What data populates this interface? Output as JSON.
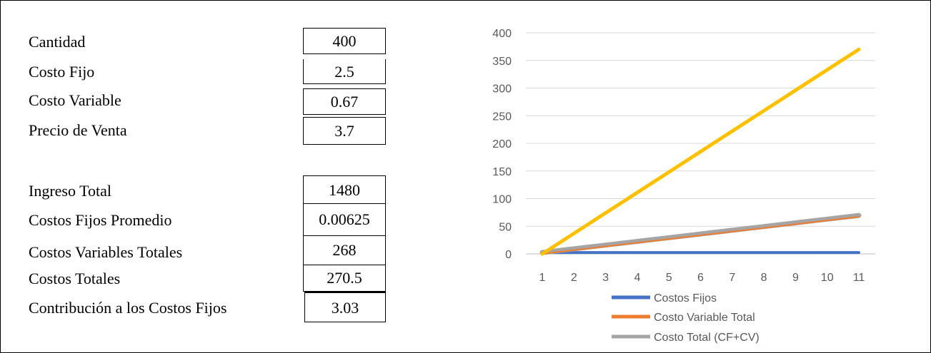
{
  "inputs": [
    {
      "label": "Cantidad",
      "value": "400"
    },
    {
      "label": "Costo Fijo",
      "value": "2.5"
    },
    {
      "label": "Costo Variable",
      "value": "0.67"
    },
    {
      "label": "Precio de Venta",
      "value": "3.7"
    }
  ],
  "results": [
    {
      "label": "Ingreso Total",
      "value": "1480"
    },
    {
      "label": "Costos Fijos Promedio",
      "value": "0.00625"
    },
    {
      "label": "Costos Variables Totales",
      "value": "268"
    },
    {
      "label": "Costos Totales",
      "value": "270.5"
    },
    {
      "label": "Contribución a los Costos Fijos",
      "value": "3.03"
    }
  ],
  "chart_data": {
    "type": "line",
    "x": [
      1,
      2,
      3,
      4,
      5,
      6,
      7,
      8,
      9,
      10,
      11
    ],
    "ylim": [
      0,
      400
    ],
    "yticks": [
      0,
      50,
      100,
      150,
      200,
      250,
      300,
      350,
      400
    ],
    "grid": true,
    "legend_position": "bottom",
    "series": [
      {
        "name": "Costos Fijos",
        "color": "#4472C4",
        "width": 4,
        "legend": true,
        "values": [
          2.5,
          2.5,
          2.5,
          2.5,
          2.5,
          2.5,
          2.5,
          2.5,
          2.5,
          2.5,
          2.5
        ]
      },
      {
        "name": "Costo Total (CF+CV)",
        "color": "#A5A5A5",
        "width": 7,
        "legend": true,
        "values": [
          2.5,
          9.2,
          15.9,
          22.6,
          29.3,
          36.0,
          42.7,
          49.4,
          56.1,
          62.8,
          69.5
        ]
      },
      {
        "name": "Costo Variable Total",
        "color": "#ED7D31",
        "width": 2,
        "legend": true,
        "values": [
          0,
          6.7,
          13.4,
          20.1,
          26.8,
          33.5,
          40.2,
          46.9,
          53.6,
          60.3,
          67.0
        ]
      },
      {
        "name": "",
        "color": "#FFC000",
        "width": 5,
        "legend": false,
        "values": [
          0,
          37,
          74,
          111,
          148,
          185,
          222,
          259,
          296,
          333,
          370
        ]
      }
    ],
    "legend_order": [
      "Costos Fijos",
      "Costo Variable Total",
      "Costo Total (CF+CV)"
    ]
  }
}
